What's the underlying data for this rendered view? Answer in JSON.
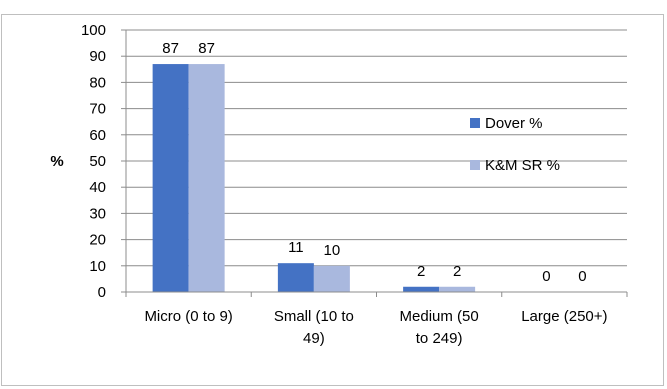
{
  "chart_data": {
    "type": "bar",
    "title": "",
    "xlabel": "",
    "ylabel": "%",
    "ylim": [
      0,
      100
    ],
    "yticks": [
      0,
      10,
      20,
      30,
      40,
      50,
      60,
      70,
      80,
      90,
      100
    ],
    "categories": [
      [
        "Micro (0 to 9)"
      ],
      [
        "Small (10 to",
        "49)"
      ],
      [
        "Medium (50",
        "to 249)"
      ],
      [
        "Large (250+)"
      ]
    ],
    "series": [
      {
        "name": "Dover %",
        "values": [
          87,
          11,
          2,
          0
        ],
        "color": "#4472c4"
      },
      {
        "name": "K&M SR %",
        "values": [
          87,
          10,
          2,
          0
        ],
        "color": "#a9b8de"
      }
    ],
    "grid": true,
    "legend_position": "right"
  }
}
